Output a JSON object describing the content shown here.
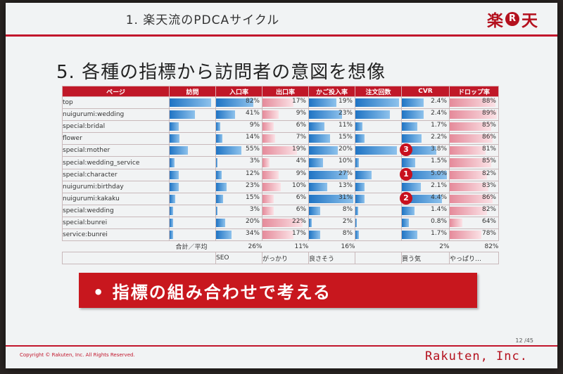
{
  "header": {
    "title": "1. 楽天流のPDCAサイクル",
    "logo_left": "楽",
    "logo_r": "R",
    "logo_right": "天"
  },
  "slide_title": "5. 各種の指標から訪問者の意図を想像",
  "table": {
    "headers": [
      "ページ",
      "訪問",
      "入口率",
      "出口率",
      "かご投入率",
      "注文回数",
      "CVR",
      "ドロップ率"
    ],
    "rows": [
      {
        "name": "top",
        "visits": 0.9,
        "entry": "82%",
        "entry_v": 82,
        "exit": "17%",
        "exit_v": 17,
        "cart": "19%",
        "cart_v": 19,
        "orders": 0.95,
        "cvr": "2.4%",
        "cvr_v": 2.4,
        "drop": "88%",
        "drop_v": 88,
        "badge": ""
      },
      {
        "name": "nuigurumi:wedding",
        "visits": 0.55,
        "entry": "41%",
        "entry_v": 41,
        "exit": "9%",
        "exit_v": 9,
        "cart": "23%",
        "cart_v": 23,
        "orders": 0.75,
        "cvr": "2.4%",
        "cvr_v": 2.4,
        "drop": "89%",
        "drop_v": 89,
        "badge": ""
      },
      {
        "name": "special:bridal",
        "visits": 0.2,
        "entry": "9%",
        "entry_v": 9,
        "exit": "6%",
        "exit_v": 6,
        "cart": "11%",
        "cart_v": 11,
        "orders": 0.15,
        "cvr": "1.7%",
        "cvr_v": 1.7,
        "drop": "85%",
        "drop_v": 85,
        "badge": ""
      },
      {
        "name": "flower",
        "visits": 0.22,
        "entry": "14%",
        "entry_v": 14,
        "exit": "7%",
        "exit_v": 7,
        "cart": "15%",
        "cart_v": 15,
        "orders": 0.2,
        "cvr": "2.2%",
        "cvr_v": 2.2,
        "drop": "86%",
        "drop_v": 86,
        "badge": ""
      },
      {
        "name": "special:mother",
        "visits": 0.4,
        "entry": "55%",
        "entry_v": 55,
        "exit": "19%",
        "exit_v": 19,
        "cart": "20%",
        "cart_v": 20,
        "orders": 0.9,
        "cvr": "3.8%",
        "cvr_v": 3.8,
        "drop": "81%",
        "drop_v": 81,
        "badge": "3"
      },
      {
        "name": "special:wedding_service",
        "visits": 0.1,
        "entry": "3%",
        "entry_v": 3,
        "exit": "4%",
        "exit_v": 4,
        "cart": "10%",
        "cart_v": 10,
        "orders": 0.08,
        "cvr": "1.5%",
        "cvr_v": 1.5,
        "drop": "85%",
        "drop_v": 85,
        "badge": ""
      },
      {
        "name": "special:character",
        "visits": 0.2,
        "entry": "12%",
        "entry_v": 12,
        "exit": "9%",
        "exit_v": 9,
        "cart": "27%",
        "cart_v": 27,
        "orders": 0.35,
        "cvr": "5.0%",
        "cvr_v": 5.0,
        "drop": "82%",
        "drop_v": 82,
        "badge": "1"
      },
      {
        "name": "nuigurumi:birthday",
        "visits": 0.2,
        "entry": "23%",
        "entry_v": 23,
        "exit": "10%",
        "exit_v": 10,
        "cart": "13%",
        "cart_v": 13,
        "orders": 0.2,
        "cvr": "2.1%",
        "cvr_v": 2.1,
        "drop": "83%",
        "drop_v": 83,
        "badge": ""
      },
      {
        "name": "nuigurumi:kakaku",
        "visits": 0.12,
        "entry": "15%",
        "entry_v": 15,
        "exit": "6%",
        "exit_v": 6,
        "cart": "31%",
        "cart_v": 31,
        "orders": 0.2,
        "cvr": "4.4%",
        "cvr_v": 4.4,
        "drop": "86%",
        "drop_v": 86,
        "badge": "2"
      },
      {
        "name": "special:wedding",
        "visits": 0.08,
        "entry": "3%",
        "entry_v": 3,
        "exit": "6%",
        "exit_v": 6,
        "cart": "8%",
        "cart_v": 8,
        "orders": 0.06,
        "cvr": "1.4%",
        "cvr_v": 1.4,
        "drop": "82%",
        "drop_v": 82,
        "badge": ""
      },
      {
        "name": "special:bunrei",
        "visits": 0.07,
        "entry": "20%",
        "entry_v": 20,
        "exit": "22%",
        "exit_v": 22,
        "cart": "2%",
        "cart_v": 2,
        "orders": 0.03,
        "cvr": "0.8%",
        "cvr_v": 0.8,
        "drop": "64%",
        "drop_v": 64,
        "badge": ""
      },
      {
        "name": "service:bunrei",
        "visits": 0.07,
        "entry": "34%",
        "entry_v": 34,
        "exit": "17%",
        "exit_v": 17,
        "cart": "8%",
        "cart_v": 8,
        "orders": 0.08,
        "cvr": "1.7%",
        "cvr_v": 1.7,
        "drop": "78%",
        "drop_v": 78,
        "badge": ""
      }
    ],
    "total": {
      "label": "合計／平均",
      "entry": "26%",
      "exit": "11%",
      "cart": "16%",
      "cvr": "2%",
      "drop": "82%"
    },
    "notes": {
      "entry": "SEO",
      "exit": "がっかり",
      "cart": "良さそう",
      "cvr": "買う気",
      "drop": "やっぱり…"
    }
  },
  "banner": {
    "text": "• 指標の組み合わせで考える"
  },
  "footer": {
    "page_number": "12 /45",
    "copyright": "Copyright © Rakuten, Inc. All Rights Reserved.",
    "company": "Rakuten, Inc."
  },
  "colors": {
    "brand_red": "#c2162c",
    "bar_blue": "#1f74c4",
    "bar_pink": "#e58a9a"
  }
}
